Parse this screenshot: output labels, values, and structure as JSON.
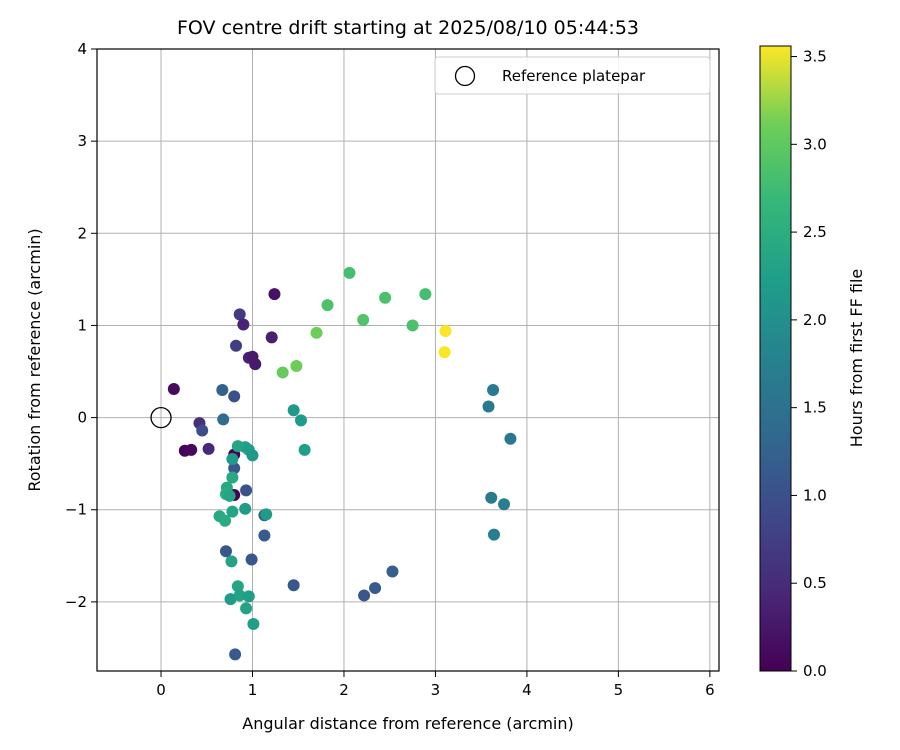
{
  "chart_data": {
    "type": "scatter",
    "title": "FOV centre drift starting at 2025/08/10 05:44:53",
    "xlabel": "Angular distance from reference (arcmin)",
    "ylabel": "Rotation from reference (arcmin)",
    "xlim": [
      -0.7,
      6.1
    ],
    "ylim": [
      -2.75,
      4.0
    ],
    "xticks": [
      0,
      1,
      2,
      3,
      4,
      5,
      6
    ],
    "yticks": [
      -2,
      -1,
      0,
      1,
      2,
      3,
      4
    ],
    "grid": true,
    "legend": {
      "placement": "top-right",
      "entries": [
        "Reference platepar"
      ]
    },
    "reference_point": {
      "name": "Reference platepar",
      "x": 0,
      "y": 0
    },
    "colorbar": {
      "label": "Hours from first FF file",
      "colormap": "viridis",
      "range": [
        0.0,
        3.56
      ],
      "ticks": [
        0.0,
        0.5,
        1.0,
        1.5,
        2.0,
        2.5,
        3.0,
        3.5
      ],
      "tick_labels": [
        "0.0",
        "0.5",
        "1.0",
        "1.5",
        "2.0",
        "2.5",
        "3.0",
        "3.5"
      ]
    },
    "points": [
      {
        "x": 0.14,
        "y": 0.31,
        "c": 0.12
      },
      {
        "x": 0.26,
        "y": -0.36,
        "c": 0.05
      },
      {
        "x": 0.33,
        "y": -0.35,
        "c": 0.08
      },
      {
        "x": 0.42,
        "y": -0.06,
        "c": 0.55
      },
      {
        "x": 0.45,
        "y": -0.14,
        "c": 0.95
      },
      {
        "x": 0.52,
        "y": -0.34,
        "c": 0.45
      },
      {
        "x": 0.67,
        "y": 0.3,
        "c": 1.25
      },
      {
        "x": 0.68,
        "y": -0.02,
        "c": 1.4
      },
      {
        "x": 0.8,
        "y": 0.23,
        "c": 1.0
      },
      {
        "x": 0.82,
        "y": 0.78,
        "c": 0.75
      },
      {
        "x": 0.86,
        "y": 1.12,
        "c": 0.7
      },
      {
        "x": 0.9,
        "y": 1.01,
        "c": 0.4
      },
      {
        "x": 0.96,
        "y": 0.65,
        "c": 0.38
      },
      {
        "x": 1.0,
        "y": 0.66,
        "c": 0.3
      },
      {
        "x": 1.03,
        "y": 0.58,
        "c": 0.28
      },
      {
        "x": 1.21,
        "y": 0.87,
        "c": 0.35
      },
      {
        "x": 1.24,
        "y": 1.34,
        "c": 0.2
      },
      {
        "x": 0.8,
        "y": -0.4,
        "c": 0.02
      },
      {
        "x": 0.8,
        "y": -0.84,
        "c": 0.03
      },
      {
        "x": 0.8,
        "y": -0.55,
        "c": 1.1
      },
      {
        "x": 0.93,
        "y": -0.79,
        "c": 1.05
      },
      {
        "x": 0.92,
        "y": -0.32,
        "c": 2.3
      },
      {
        "x": 0.84,
        "y": -0.31,
        "c": 2.35
      },
      {
        "x": 0.96,
        "y": -0.35,
        "c": 2.25
      },
      {
        "x": 1.0,
        "y": -0.41,
        "c": 2.15
      },
      {
        "x": 0.78,
        "y": -0.45,
        "c": 2.2
      },
      {
        "x": 0.78,
        "y": -0.65,
        "c": 2.4
      },
      {
        "x": 0.72,
        "y": -0.76,
        "c": 2.4
      },
      {
        "x": 0.71,
        "y": -0.83,
        "c": 2.45
      },
      {
        "x": 0.75,
        "y": -0.85,
        "c": 2.35
      },
      {
        "x": 0.64,
        "y": -1.07,
        "c": 2.4
      },
      {
        "x": 0.7,
        "y": -1.12,
        "c": 2.45
      },
      {
        "x": 0.78,
        "y": -1.02,
        "c": 2.35
      },
      {
        "x": 0.92,
        "y": -0.99,
        "c": 2.2
      },
      {
        "x": 1.13,
        "y": -1.06,
        "c": 1.2
      },
      {
        "x": 1.15,
        "y": -1.05,
        "c": 2.2
      },
      {
        "x": 1.13,
        "y": -1.28,
        "c": 1.15
      },
      {
        "x": 0.71,
        "y": -1.45,
        "c": 1.1
      },
      {
        "x": 0.77,
        "y": -1.56,
        "c": 2.3
      },
      {
        "x": 0.99,
        "y": -1.54,
        "c": 1.1
      },
      {
        "x": 0.76,
        "y": -1.97,
        "c": 2.2
      },
      {
        "x": 0.84,
        "y": -1.83,
        "c": 2.35
      },
      {
        "x": 0.86,
        "y": -1.93,
        "c": 2.3
      },
      {
        "x": 0.96,
        "y": -1.94,
        "c": 2.25
      },
      {
        "x": 0.93,
        "y": -2.07,
        "c": 2.3
      },
      {
        "x": 1.01,
        "y": -2.24,
        "c": 2.25
      },
      {
        "x": 0.81,
        "y": -2.57,
        "c": 1.15
      },
      {
        "x": 1.45,
        "y": -1.82,
        "c": 1.1
      },
      {
        "x": 1.45,
        "y": 0.08,
        "c": 2.15
      },
      {
        "x": 1.53,
        "y": -0.03,
        "c": 2.2
      },
      {
        "x": 1.57,
        "y": -0.35,
        "c": 2.25
      },
      {
        "x": 1.33,
        "y": 0.49,
        "c": 3.05
      },
      {
        "x": 1.48,
        "y": 0.56,
        "c": 3.1
      },
      {
        "x": 1.7,
        "y": 0.92,
        "c": 3.1
      },
      {
        "x": 1.82,
        "y": 1.22,
        "c": 2.85
      },
      {
        "x": 2.06,
        "y": 1.57,
        "c": 2.8
      },
      {
        "x": 2.21,
        "y": 1.06,
        "c": 2.9
      },
      {
        "x": 2.45,
        "y": 1.3,
        "c": 2.85
      },
      {
        "x": 2.75,
        "y": 1.0,
        "c": 2.85
      },
      {
        "x": 2.89,
        "y": 1.34,
        "c": 2.8
      },
      {
        "x": 3.11,
        "y": 0.94,
        "c": 3.55
      },
      {
        "x": 3.1,
        "y": 0.71,
        "c": 3.55
      },
      {
        "x": 2.22,
        "y": -1.93,
        "c": 1.1
      },
      {
        "x": 2.34,
        "y": -1.85,
        "c": 1.15
      },
      {
        "x": 2.53,
        "y": -1.67,
        "c": 1.2
      },
      {
        "x": 3.58,
        "y": 0.12,
        "c": 1.65
      },
      {
        "x": 3.63,
        "y": 0.3,
        "c": 1.65
      },
      {
        "x": 3.82,
        "y": -0.23,
        "c": 1.6
      },
      {
        "x": 3.61,
        "y": -0.87,
        "c": 1.65
      },
      {
        "x": 3.75,
        "y": -0.94,
        "c": 1.7
      },
      {
        "x": 3.64,
        "y": -1.27,
        "c": 1.7
      }
    ]
  }
}
